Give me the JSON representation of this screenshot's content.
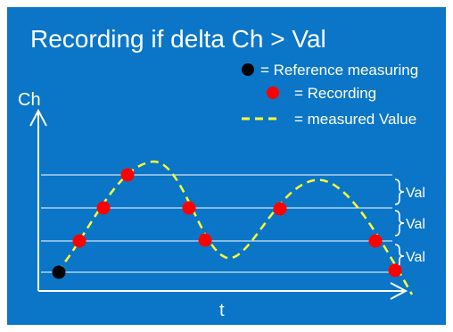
{
  "title": "Recording if delta Ch > Val",
  "legend": {
    "reference": "= Reference measuring",
    "recording": "= Recording",
    "measured": "= measured Value"
  },
  "axes": {
    "y_label": "Ch",
    "x_label": "t"
  },
  "band_labels": [
    "Val",
    "Val",
    "Val"
  ],
  "colors": {
    "background": "#0b76c7",
    "foreground": "#ffffff",
    "curve": "#ffff33",
    "recording": "#ff0000",
    "reference": "#000000"
  }
}
